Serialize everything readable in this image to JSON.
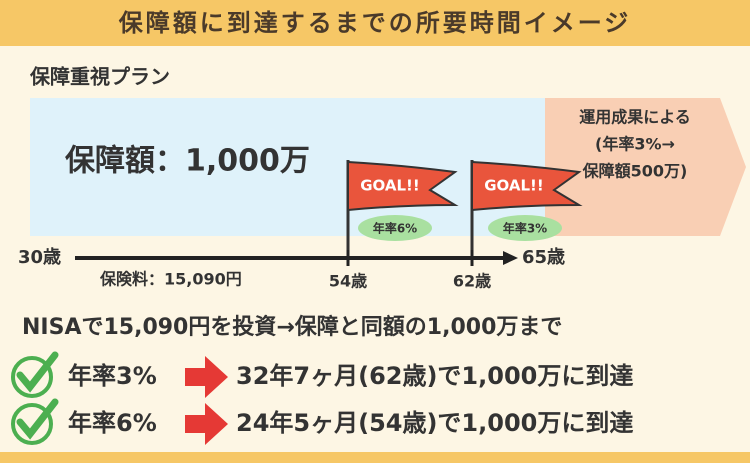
{
  "header": {
    "title": "保障額に到達するまでの所要時間イメージ"
  },
  "plan": {
    "label": "保障重視プラン",
    "coverage": "保障額：1,000万",
    "note": [
      "運用成果による",
      "(年率3%→",
      "保障額500万)"
    ],
    "flags": [
      {
        "text": "GOAL!!",
        "rate": "年率6%"
      },
      {
        "text": "GOAL!!",
        "rate": "年率3%"
      }
    ],
    "timeline": {
      "start": "30歳",
      "premium": "保険料：15,090円",
      "marks": [
        "54歳",
        "62歳"
      ],
      "end": "65歳"
    }
  },
  "summary": {
    "heading": "NISAで15,090円を投資→保障と同額の1,000万まで",
    "rows": [
      {
        "rate": "年率3%",
        "result": "32年7ヶ月(62歳)で1,000万に到達"
      },
      {
        "rate": "年率6%",
        "result": "24年5ヶ月(54歳)で1,000万に到達"
      }
    ]
  }
}
